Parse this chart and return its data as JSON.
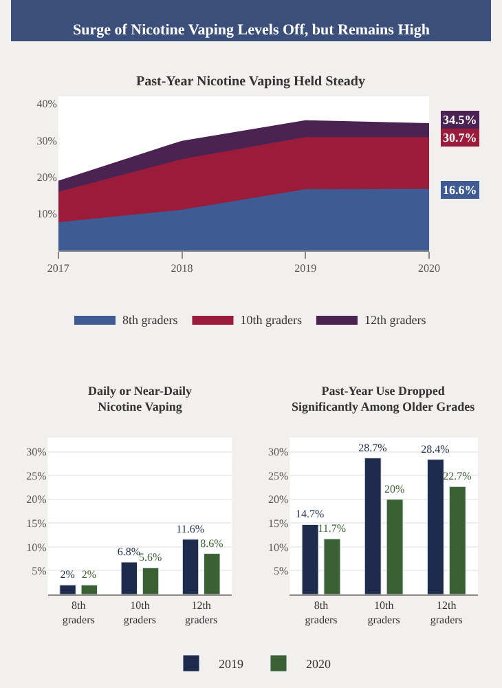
{
  "chart_data": [
    {
      "type": "area",
      "title": "Surge of Nicotine Vaping Levels Off, but Remains High",
      "subtitle": "Past-Year Nicotine Vaping Held Steady",
      "x": [
        2017,
        2018,
        2019,
        2020
      ],
      "xlim": [
        2017,
        2020
      ],
      "xticks": [
        2017,
        2018,
        2019,
        2020
      ],
      "ylim": [
        0,
        42
      ],
      "yticks": [
        {
          "value": 10,
          "label": "10%"
        },
        {
          "value": 20,
          "label": "20%"
        },
        {
          "value": 30,
          "label": "30%"
        },
        {
          "value": 40,
          "label": "40%"
        }
      ],
      "legend": "bottom",
      "grid": false,
      "series": [
        {
          "name": "8th graders",
          "color": "#3f5b94",
          "values": [
            7.5,
            10.9,
            16.5,
            16.6
          ],
          "value_labels": [
            null,
            null,
            null,
            "16.6%"
          ]
        },
        {
          "name": "10th graders",
          "color": "#9b1c3a",
          "values": [
            15.8,
            24.7,
            30.7,
            30.7
          ],
          "value_labels": [
            null,
            null,
            null,
            "30.7%"
          ]
        },
        {
          "name": "12th graders",
          "color": "#4a2352",
          "values": [
            18.8,
            29.7,
            35.3,
            34.5
          ],
          "value_labels": [
            null,
            null,
            null,
            "34.5%"
          ]
        }
      ]
    },
    {
      "type": "bar",
      "title": "Daily or Near-Daily\nNicotine Vaping",
      "categories": [
        "8th\ngraders",
        "10th\ngraders",
        "12th\ngraders"
      ],
      "ylim": [
        0,
        33
      ],
      "yticks": [
        {
          "value": 5,
          "label": "5%"
        },
        {
          "value": 10,
          "label": "10%"
        },
        {
          "value": 15,
          "label": "15%"
        },
        {
          "value": 20,
          "label": "20%"
        },
        {
          "value": 25,
          "label": "25%"
        },
        {
          "value": 30,
          "label": "30%"
        }
      ],
      "grid": "y",
      "legend": "bottom",
      "series": [
        {
          "name": "2019",
          "color": "#1f2b4d",
          "values": [
            2,
            6.8,
            11.6
          ],
          "value_labels": [
            "2%",
            "6.8%",
            "11.6%"
          ]
        },
        {
          "name": "2020",
          "color": "#3b6034",
          "values": [
            2,
            5.6,
            8.6
          ],
          "value_labels": [
            "2%",
            "5.6%",
            "8.6%"
          ]
        }
      ]
    },
    {
      "type": "bar",
      "title": "Past-Year Use Dropped\nSignificantly Among Older Grades",
      "categories": [
        "8th\ngraders",
        "10th\ngraders",
        "12th\ngraders"
      ],
      "ylim": [
        0,
        33
      ],
      "yticks": [
        {
          "value": 5,
          "label": "5%"
        },
        {
          "value": 10,
          "label": "10%"
        },
        {
          "value": 15,
          "label": "15%"
        },
        {
          "value": 20,
          "label": "20%"
        },
        {
          "value": 25,
          "label": "25%"
        },
        {
          "value": 30,
          "label": "30%"
        }
      ],
      "grid": "y",
      "legend": "bottom",
      "series": [
        {
          "name": "2019",
          "color": "#1f2b4d",
          "values": [
            14.7,
            28.7,
            28.4
          ],
          "value_labels": [
            "14.7%",
            "28.7%",
            "28.4%"
          ]
        },
        {
          "name": "2020",
          "color": "#3b6034",
          "values": [
            11.7,
            20,
            22.7
          ],
          "value_labels": [
            "11.7%",
            "20%",
            "22.7%"
          ]
        }
      ]
    }
  ]
}
